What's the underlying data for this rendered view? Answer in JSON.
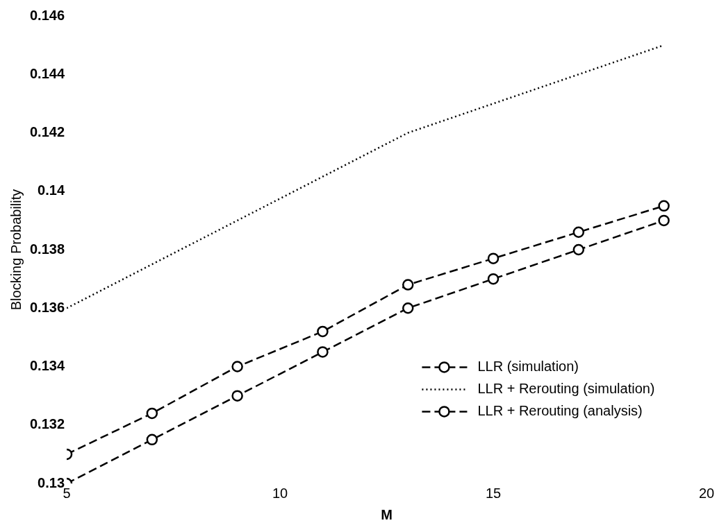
{
  "chart_data": {
    "type": "line",
    "xlabel": "M",
    "ylabel": "Blocking Probability",
    "x": [
      5,
      7,
      9,
      11,
      13,
      15,
      17,
      19
    ],
    "series": [
      {
        "name": "LLR (simulation)",
        "color": "#000000",
        "marker": "circle",
        "line_style": "dashed",
        "values": [
          0.13,
          0.1315,
          0.133,
          0.1345,
          0.136,
          0.137,
          0.138,
          0.139
        ]
      },
      {
        "name": "LLR + Rerouting (simulation)",
        "color": "#000000",
        "marker": "none",
        "line_style": "dotted",
        "values": [
          0.136,
          0.1375,
          0.139,
          0.1405,
          0.142,
          0.143,
          0.144,
          0.145
        ]
      },
      {
        "name": "LLR + Rerouting (analysis)",
        "color": "#000000",
        "marker": "circle",
        "line_style": "dashed",
        "values": [
          0.131,
          0.1324,
          0.134,
          0.1352,
          0.1368,
          0.1377,
          0.1386,
          0.1395
        ]
      }
    ],
    "xlim": [
      5,
      20
    ],
    "xticks": [
      5,
      10,
      15,
      20
    ],
    "ylim": [
      0.13,
      0.146
    ],
    "yticks": [
      0.13,
      0.132,
      0.134,
      0.136,
      0.138,
      0.14,
      0.142,
      0.144,
      0.146
    ],
    "grid": false,
    "legend": "bottom right"
  }
}
